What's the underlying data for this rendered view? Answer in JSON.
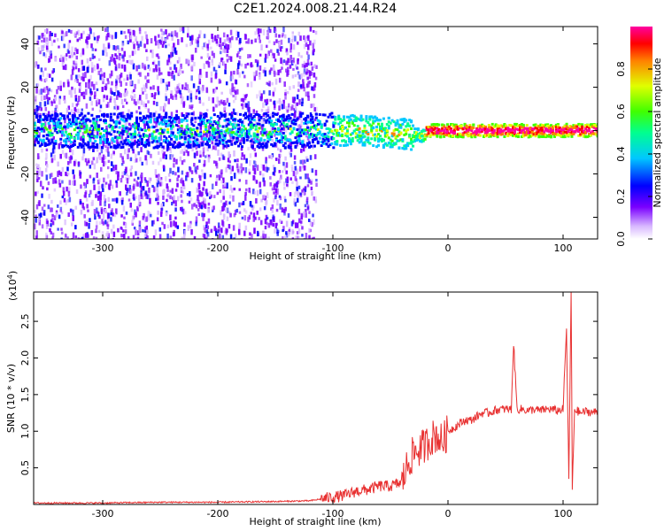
{
  "figure": {
    "title": "C2E1.2024.008.21.44.R24"
  },
  "chart_data": [
    {
      "type": "heatmap",
      "xlabel": "Height of straight line (km)",
      "ylabel": "Frequency (Hz)",
      "xlim": [
        -360,
        130
      ],
      "ylim": [
        -50,
        48
      ],
      "xticks": [
        -300,
        -200,
        -100,
        0,
        100
      ],
      "yticks": [
        -40,
        -20,
        0,
        20,
        40
      ],
      "colorbar": {
        "label": "Normalized spectral amplitude",
        "range": [
          0.0,
          1.0
        ],
        "ticks": [
          0.0,
          0.2,
          0.4,
          0.6,
          0.8
        ],
        "colors": [
          "#ffffff",
          "#d8b8ff",
          "#7a00ff",
          "#0000ff",
          "#00c8ff",
          "#00ff90",
          "#40ff00",
          "#e0ff00",
          "#ff8000",
          "#ff0000",
          "#ff00a0"
        ]
      },
      "description_points": {
        "noise_region_x": [
          -360,
          -125
        ],
        "signal_band_center_hz": 0,
        "signal_band_x": [
          -360,
          130
        ],
        "high_amplitude_segments_x": [
          [
            -20,
            130
          ]
        ]
      }
    },
    {
      "type": "line",
      "xlabel": "Height of straight line (km)",
      "ylabel": "SNR (10 * v/v)",
      "yscale_label": "(x10",
      "yscale_exp": "4",
      "yscale_close": ")",
      "xlim": [
        -360,
        130
      ],
      "ylim": [
        0,
        2.9
      ],
      "xticks": [
        -300,
        -200,
        -100,
        0,
        100
      ],
      "yticks": [
        0.5,
        1.0,
        1.5,
        2.0,
        2.5
      ],
      "ytick_labels": [
        "0.5",
        "1.0",
        "1.5",
        "2.0",
        "2.5"
      ],
      "series": [
        {
          "color": "#e83030",
          "x": [
            -360,
            -300,
            -250,
            -200,
            -150,
            -120,
            -100,
            -90,
            -80,
            -70,
            -60,
            -50,
            -40,
            -35,
            -30,
            -25,
            -20,
            -15,
            -10,
            -5,
            0,
            5,
            10,
            15,
            20,
            25,
            30,
            35,
            40,
            45,
            50,
            55,
            57,
            60,
            65,
            70,
            75,
            80,
            85,
            90,
            95,
            100,
            103,
            105,
            107,
            108,
            110,
            115,
            120,
            125,
            130
          ],
          "y": [
            0.02,
            0.02,
            0.03,
            0.03,
            0.04,
            0.05,
            0.1,
            0.12,
            0.18,
            0.2,
            0.25,
            0.25,
            0.3,
            0.55,
            0.7,
            0.75,
            0.8,
            0.9,
            0.95,
            0.85,
            1.0,
            1.05,
            1.1,
            1.15,
            1.15,
            1.2,
            1.25,
            1.25,
            1.28,
            1.3,
            1.3,
            1.3,
            2.2,
            1.3,
            1.3,
            1.28,
            1.3,
            1.28,
            1.3,
            1.3,
            1.28,
            1.3,
            2.4,
            0.3,
            2.9,
            0.2,
            1.3,
            1.25,
            1.27,
            1.26,
            1.26
          ]
        }
      ]
    }
  ]
}
